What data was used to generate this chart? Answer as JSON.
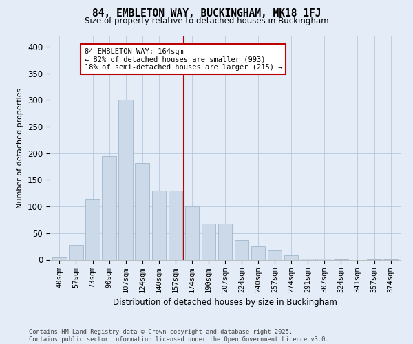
{
  "title": "84, EMBLETON WAY, BUCKINGHAM, MK18 1FJ",
  "subtitle": "Size of property relative to detached houses in Buckingham",
  "xlabel": "Distribution of detached houses by size in Buckingham",
  "ylabel": "Number of detached properties",
  "categories": [
    "40sqm",
    "57sqm",
    "73sqm",
    "90sqm",
    "107sqm",
    "124sqm",
    "140sqm",
    "157sqm",
    "174sqm",
    "190sqm",
    "207sqm",
    "224sqm",
    "240sqm",
    "257sqm",
    "274sqm",
    "291sqm",
    "307sqm",
    "324sqm",
    "341sqm",
    "357sqm",
    "374sqm"
  ],
  "values": [
    5,
    28,
    115,
    195,
    300,
    182,
    130,
    130,
    100,
    68,
    68,
    37,
    25,
    17,
    8,
    2,
    2,
    1,
    0,
    1,
    1
  ],
  "bar_color": "#ccd9e8",
  "bar_edge_color": "#a8bdd0",
  "grid_color": "#b8c8dc",
  "bg_color": "#e4ecf7",
  "property_line_color": "#bb0000",
  "annotation_text": "84 EMBLETON WAY: 164sqm\n← 82% of detached houses are smaller (993)\n18% of semi-detached houses are larger (215) →",
  "annotation_box_color": "#bb0000",
  "footer": "Contains HM Land Registry data © Crown copyright and database right 2025.\nContains public sector information licensed under the Open Government Licence v3.0.",
  "ylim": [
    0,
    420
  ],
  "yticks": [
    0,
    50,
    100,
    150,
    200,
    250,
    300,
    350,
    400
  ]
}
